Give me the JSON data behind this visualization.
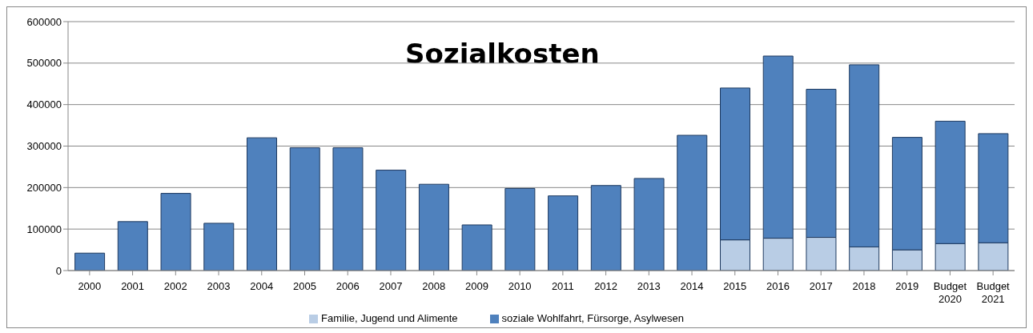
{
  "chart_data": {
    "type": "bar",
    "title": "Sozialkosten",
    "stacked": true,
    "grid": "y",
    "legend": "bottom",
    "categories": [
      "2000",
      "2001",
      "2002",
      "2003",
      "2004",
      "2005",
      "2006",
      "2007",
      "2008",
      "2009",
      "2010",
      "2011",
      "2012",
      "2013",
      "2014",
      "2015",
      "2016",
      "2017",
      "2018",
      "2019",
      "Budget 2020",
      "Budget 2021"
    ],
    "series": [
      {
        "name": "Familie, Jugend und Alimente",
        "color": "#b9cde5",
        "values": [
          null,
          null,
          null,
          null,
          null,
          null,
          null,
          null,
          null,
          null,
          null,
          null,
          null,
          null,
          null,
          74000,
          78000,
          80000,
          57000,
          50000,
          65000,
          67000
        ]
      },
      {
        "name": "soziale Wohlfahrt, Fürsorge, Asylwesen",
        "color": "#4f81bd",
        "values": [
          42000,
          118000,
          186000,
          114000,
          320000,
          296000,
          296000,
          242000,
          208000,
          110000,
          198000,
          180000,
          205000,
          222000,
          326000,
          366000,
          439000,
          357000,
          439000,
          271000,
          295000,
          263000
        ]
      }
    ],
    "ylim": [
      0,
      600000
    ],
    "yticks": [
      0,
      100000,
      200000,
      300000,
      400000,
      500000,
      600000
    ]
  }
}
